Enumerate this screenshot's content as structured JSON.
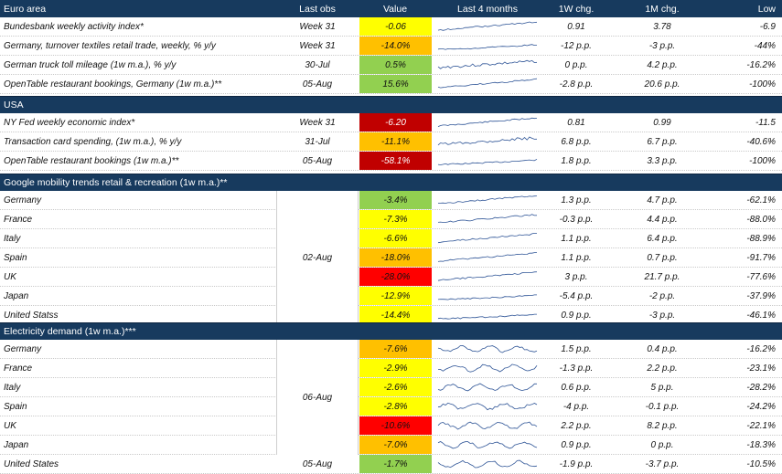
{
  "header": {
    "section": "Euro area",
    "last_obs": "Last obs",
    "value": "Value",
    "last_4_months": "Last 4 months",
    "w1": "1W chg.",
    "m1": "1M chg.",
    "low": "Low"
  },
  "colors": {
    "header_bg": "#173A5E",
    "green": "#92D050",
    "yellow": "#FFFF00",
    "orange": "#FFC000",
    "red": "#FF0000",
    "darkred": "#C00000",
    "spark": "#2F5597"
  },
  "sections": [
    {
      "title": "Euro area",
      "rows": [
        {
          "name": "Bundesbank weekly activity index*",
          "last_obs": "Week 31",
          "value": "-0.06",
          "color": "yellow",
          "spark": "trend-up",
          "w1": "0.91",
          "m1": "3.78",
          "low": "-6.9"
        },
        {
          "name": "Germany, turnover textiles retail trade, weekly, % y/y",
          "last_obs": "Week 31",
          "value": "-14.0%",
          "color": "orange",
          "spark": "flat-up",
          "w1": "-12 p.p.",
          "m1": "-3 p.p.",
          "low": "-44%"
        },
        {
          "name": "German truck toll mileage (1w m.a.), % y/y",
          "last_obs": "30-Jul",
          "value": "0.5%",
          "color": "green",
          "spark": "noisy-up",
          "w1": "0 p.p.",
          "m1": "4.2 p.p.",
          "low": "-16.2%"
        },
        {
          "name": "OpenTable restaurant bookings, Germany (1w m.a.)**",
          "last_obs": "05-Aug",
          "value": "15.6%",
          "color": "green",
          "spark": "trend-up",
          "w1": "-2.8 p.p.",
          "m1": "20.6 p.p.",
          "low": "-100%"
        }
      ]
    },
    {
      "title": "USA",
      "rows": [
        {
          "name": "NY Fed weekly economic index*",
          "last_obs": "Week 31",
          "value": "-6.20",
          "color": "darkred",
          "spark": "trend-up",
          "w1": "0.81",
          "m1": "0.99",
          "low": "-11.5"
        },
        {
          "name": "Transaction card spending, (1w m.a.), % y/y",
          "last_obs": "31-Jul",
          "value": "-11.1%",
          "color": "orange",
          "spark": "noisy-up",
          "w1": "6.8 p.p.",
          "m1": "6.7 p.p.",
          "low": "-40.6%"
        },
        {
          "name": "OpenTable restaurant bookings (1w m.a.)**",
          "last_obs": "05-Aug",
          "value": "-58.1%",
          "color": "darkred",
          "spark": "flat-up",
          "w1": "1.8 p.p.",
          "m1": "3.3 p.p.",
          "low": "-100%"
        }
      ]
    },
    {
      "title": "Google mobility trends retail & recreation (1w m.a.)**",
      "merged_obs": "02-Aug",
      "rows": [
        {
          "name": "Germany",
          "last_obs": "",
          "value": "-3.4%",
          "color": "green",
          "spark": "trend-up",
          "w1": "1.3 p.p.",
          "m1": "4.7 p.p.",
          "low": "-62.1%"
        },
        {
          "name": "France",
          "last_obs": "",
          "value": "-7.3%",
          "color": "yellow",
          "spark": "trend-up",
          "w1": "-0.3 p.p.",
          "m1": "4.4 p.p.",
          "low": "-88.0%"
        },
        {
          "name": "Italy",
          "last_obs": "",
          "value": "-6.6%",
          "color": "yellow",
          "spark": "trend-up",
          "w1": "1.1 p.p.",
          "m1": "6.4 p.p.",
          "low": "-88.9%"
        },
        {
          "name": "Spain",
          "last_obs": "",
          "value": "-18.0%",
          "color": "orange",
          "spark": "trend-up",
          "w1": "1.1 p.p.",
          "m1": "0.7 p.p.",
          "low": "-91.7%"
        },
        {
          "name": "UK",
          "last_obs": "",
          "value": "-28.0%",
          "color": "red",
          "spark": "trend-up",
          "w1": "3 p.p.",
          "m1": "21.7 p.p.",
          "low": "-77.6%"
        },
        {
          "name": "Japan",
          "last_obs": "",
          "value": "-12.9%",
          "color": "yellow",
          "spark": "flat-up",
          "w1": "-5.4 p.p.",
          "m1": "-2 p.p.",
          "low": "-37.9%"
        },
        {
          "name": "United Statss",
          "last_obs": "",
          "value": "-14.4%",
          "color": "yellow",
          "spark": "flat-up",
          "w1": "0.9 p.p.",
          "m1": "-3 p.p.",
          "low": "-46.1%"
        }
      ]
    },
    {
      "title": "Electricity demand (1w m.a.)***",
      "merged_obs": "06-Aug",
      "rows": [
        {
          "name": "Germany",
          "last_obs": "",
          "value": "-7.6%",
          "color": "orange",
          "spark": "wave",
          "w1": "1.5 p.p.",
          "m1": "0.4 p.p.",
          "low": "-16.2%"
        },
        {
          "name": "France",
          "last_obs": "",
          "value": "-2.9%",
          "color": "yellow",
          "spark": "wave",
          "w1": "-1.3 p.p.",
          "m1": "2.2 p.p.",
          "low": "-23.1%"
        },
        {
          "name": "Italy",
          "last_obs": "",
          "value": "-2.6%",
          "color": "yellow",
          "spark": "wave",
          "w1": "0.6 p.p.",
          "m1": "5 p.p.",
          "low": "-28.2%"
        },
        {
          "name": "Spain",
          "last_obs": "",
          "value": "-2.8%",
          "color": "yellow",
          "spark": "wave",
          "w1": "-4 p.p.",
          "m1": "-0.1 p.p.",
          "low": "-24.2%"
        },
        {
          "name": "UK",
          "last_obs": "",
          "value": "-10.6%",
          "color": "red",
          "spark": "wave",
          "w1": "2.2 p.p.",
          "m1": "8.2 p.p.",
          "low": "-22.1%"
        },
        {
          "name": "Japan",
          "last_obs": "",
          "value": "-7.0%",
          "color": "orange",
          "spark": "wave",
          "w1": "0.9 p.p.",
          "m1": "0 p.p.",
          "low": "-18.3%"
        },
        {
          "name": "United States",
          "last_obs": "05-Aug",
          "value": "-1.7%",
          "color": "green",
          "spark": "wave",
          "w1": "-1.9 p.p.",
          "m1": "-3.7 p.p.",
          "low": "-10.5%"
        }
      ]
    }
  ]
}
